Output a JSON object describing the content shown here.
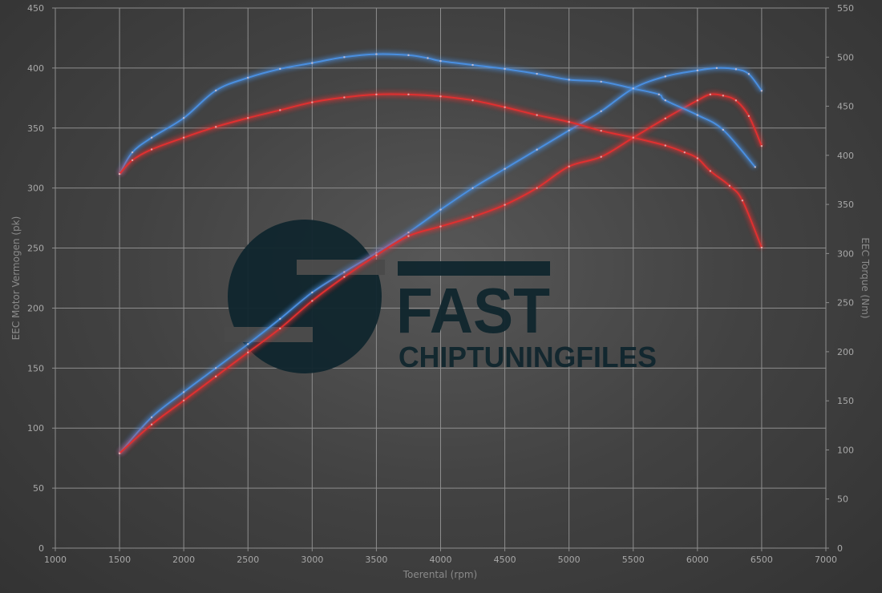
{
  "chart_data": {
    "type": "line",
    "xlabel": "Toerental (rpm)",
    "ylabel_left": "EEC Motor Vermogen (pk)",
    "ylabel_right": "EEC Torque (Nm)",
    "xlim": [
      1000,
      7000
    ],
    "ylim_left": [
      0,
      450
    ],
    "ylim_right": [
      0,
      550
    ],
    "x_ticks": [
      1000,
      1500,
      2000,
      2500,
      3000,
      3500,
      4000,
      4500,
      5000,
      5500,
      6000,
      6500,
      7000
    ],
    "y_left_ticks": [
      0,
      50,
      100,
      150,
      200,
      250,
      300,
      350,
      400,
      450
    ],
    "y_right_ticks": [
      0,
      50,
      100,
      150,
      200,
      250,
      300,
      350,
      400,
      450,
      500,
      550
    ],
    "grid": true,
    "colors": {
      "tuned": "#4a8fe0",
      "stock": "#e03030"
    },
    "series": [
      {
        "axis": "left",
        "color": "tuned",
        "x": [
          1500,
          1750,
          2000,
          2250,
          2500,
          2750,
          3000,
          3250,
          3500,
          3750,
          4000,
          4250,
          4500,
          4750,
          5000,
          5250,
          5500,
          5750,
          6000,
          6150,
          6300,
          6400,
          6500
        ],
        "values": [
          79,
          109,
          130,
          150,
          170,
          191,
          213,
          230,
          246,
          263,
          282,
          300,
          316,
          332,
          348,
          364,
          383,
          393,
          398,
          400,
          399,
          395,
          381
        ]
      },
      {
        "axis": "left",
        "color": "stock",
        "x": [
          1500,
          1750,
          2000,
          2250,
          2500,
          2750,
          3000,
          3250,
          3500,
          3750,
          4000,
          4250,
          4500,
          4750,
          5000,
          5250,
          5500,
          5750,
          6000,
          6100,
          6200,
          6300,
          6400,
          6500
        ],
        "values": [
          79,
          103,
          123,
          143,
          163,
          183,
          206,
          226,
          244,
          260,
          268,
          276,
          286,
          300,
          318,
          326,
          342,
          358,
          373,
          378,
          377,
          373,
          360,
          335
        ]
      },
      {
        "axis": "right",
        "color": "tuned",
        "x": [
          1500,
          1600,
          1750,
          2000,
          2250,
          2500,
          2750,
          3000,
          3250,
          3500,
          3750,
          3900,
          4000,
          4250,
          4500,
          4750,
          5000,
          5250,
          5500,
          5700,
          5750,
          6000,
          6200,
          6450
        ],
        "values": [
          381,
          403,
          418,
          438,
          466,
          479,
          488,
          494,
          500,
          503,
          502,
          499,
          496,
          492,
          488,
          483,
          477,
          475,
          468,
          462,
          456,
          441,
          426,
          388
        ]
      },
      {
        "axis": "right",
        "color": "stock",
        "x": [
          1500,
          1600,
          1750,
          2000,
          2250,
          2500,
          2750,
          3000,
          3250,
          3500,
          3750,
          4000,
          4250,
          4500,
          4750,
          5000,
          5250,
          5500,
          5750,
          5900,
          6000,
          6100,
          6250,
          6350,
          6500
        ],
        "values": [
          381,
          395,
          406,
          418,
          429,
          438,
          446,
          454,
          459,
          462,
          462,
          460,
          456,
          449,
          441,
          434,
          425,
          418,
          410,
          403,
          397,
          384,
          369,
          354,
          306
        ]
      }
    ]
  },
  "watermark": {
    "line1": "FAST",
    "line2": "CHIPTUNINGFILES"
  }
}
